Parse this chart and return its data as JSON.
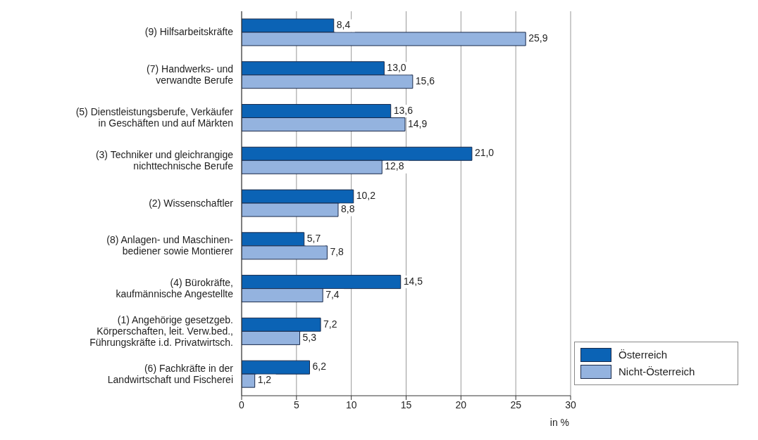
{
  "chart_data": {
    "type": "bar",
    "orientation": "horizontal",
    "xlabel": "in %",
    "categories": [
      "(9) Hilfsarbeitskräfte",
      "(7) Handwerks- und\nverwandte Berufe",
      "(5) Dienstleistungsberufe, Verkäufer\nin Geschäften und auf Märkten",
      "(3) Techniker und gleichrangige\nnichttechnische Berufe",
      "(2) Wissenschaftler",
      "(8) Anlagen- und Maschinen-\nbediener sowie Montierer",
      "(4) Bürokräfte,\nkaufmännische Angestellte",
      "(1) Angehörige gesetzgeb.\nKörperschaften, leit. Verw.bed.,\nFührungskräfte i.d. Privatwirtsch.",
      "(6) Fachkräfte in der\nLandwirtschaft und Fischerei"
    ],
    "series": [
      {
        "name": "Österreich",
        "color": "#0b63b5",
        "values": [
          8.4,
          13.0,
          13.6,
          21.0,
          10.2,
          5.7,
          14.5,
          7.2,
          6.2
        ],
        "value_labels": [
          "8,4",
          "13,0",
          "13,6",
          "21,0",
          "10,2",
          "5,7",
          "14,5",
          "7,2",
          "6,2"
        ]
      },
      {
        "name": "Nicht-Österreich",
        "color": "#94b3df",
        "values": [
          25.9,
          15.6,
          14.9,
          12.8,
          8.8,
          7.8,
          7.4,
          5.3,
          1.2
        ],
        "value_labels": [
          "25,9",
          "15,6",
          "14,9",
          "12,8",
          "8,8",
          "7,8",
          "7,4",
          "5,3",
          "1,2"
        ]
      }
    ],
    "xlim": [
      0,
      30
    ],
    "xticks": [
      0,
      5,
      10,
      15,
      20,
      25,
      30
    ],
    "grid": "x",
    "legend": "bottom right"
  }
}
